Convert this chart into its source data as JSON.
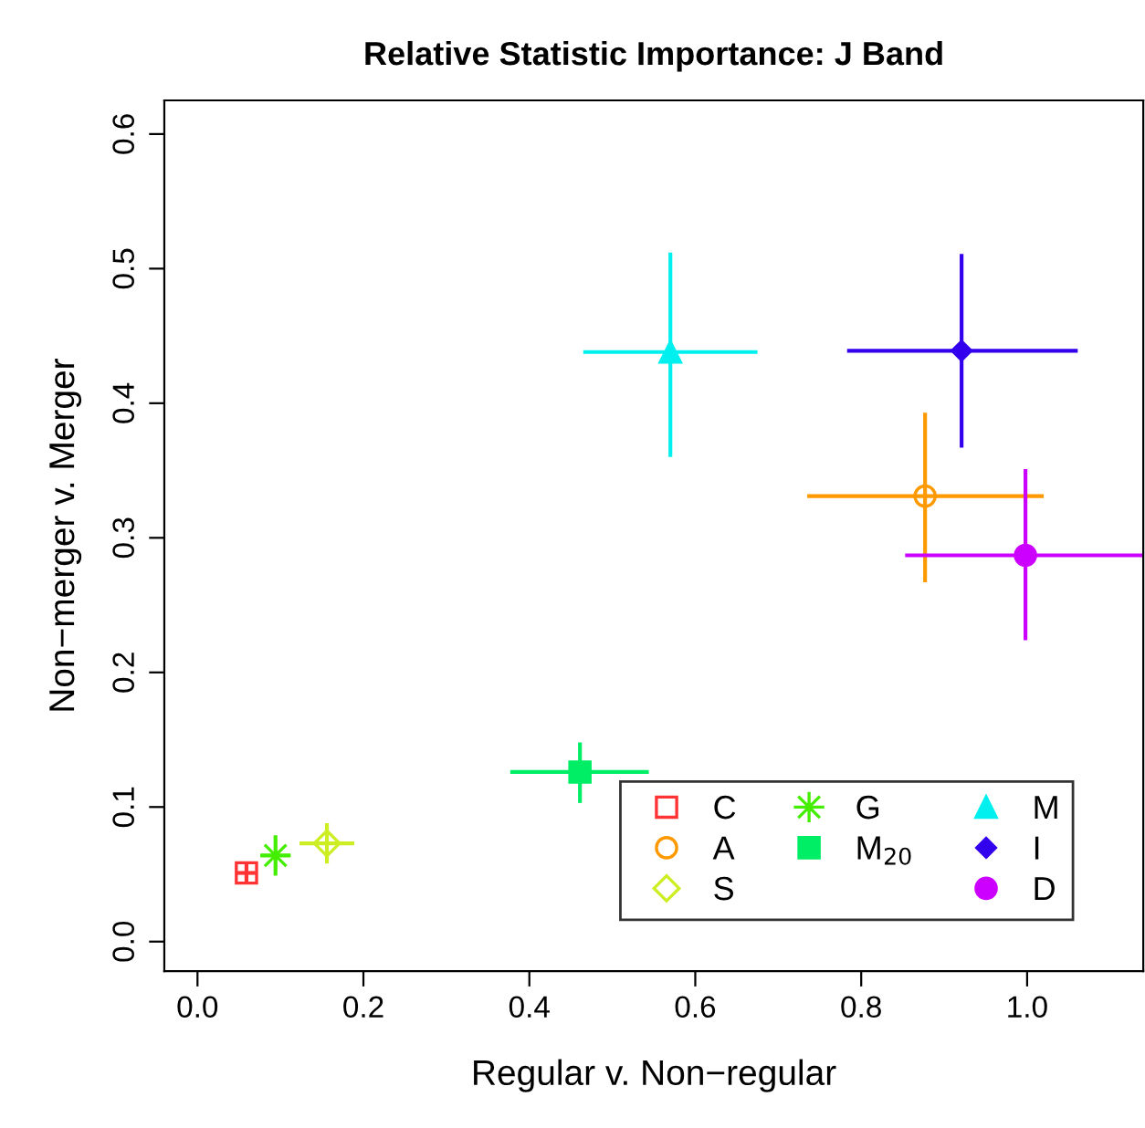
{
  "chart_data": {
    "type": "scatter",
    "title": "Relative Statistic Importance: J Band",
    "xlabel": "Regular v. Non−regular",
    "ylabel": "Non−merger v. Merger",
    "xlim": [
      -0.04,
      1.14
    ],
    "ylim": [
      -0.022,
      0.625
    ],
    "xticks": [
      {
        "value": 0,
        "label": "0.0"
      },
      0.2,
      0.4,
      0.6,
      0.8,
      {
        "value": 1,
        "label": "1.0"
      }
    ],
    "yticks": [
      {
        "value": 0,
        "label": "0.0"
      },
      0.1,
      0.2,
      0.3,
      0.4,
      0.5,
      0.6
    ],
    "grid": false,
    "legend": "bottom right",
    "series": [
      {
        "name": "C",
        "color": "#ff3333",
        "marker": "square",
        "x": [
          0.059
        ],
        "values": [
          0.051
        ],
        "xerrors": [
          [
            0.048,
            0.07
          ]
        ],
        "errors": [
          [
            0.044,
            0.058
          ]
        ]
      },
      {
        "name": "A",
        "color": "#ff9900",
        "marker": "circle",
        "x": [
          0.877
        ],
        "values": [
          0.331
        ],
        "xerrors": [
          [
            0.735,
            1.02
          ]
        ],
        "errors": [
          [
            0.267,
            0.393
          ]
        ]
      },
      {
        "name": "S",
        "color": "#ccee22",
        "marker": "diamond",
        "x": [
          0.156
        ],
        "values": [
          0.073
        ],
        "xerrors": [
          [
            0.123,
            0.189
          ]
        ],
        "errors": [
          [
            0.058,
            0.088
          ]
        ]
      },
      {
        "name": "G",
        "color": "#44ee00",
        "marker": "star",
        "x": [
          0.094
        ],
        "values": [
          0.064
        ],
        "xerrors": [
          [
            0.076,
            0.112
          ]
        ],
        "errors": [
          [
            0.049,
            0.079
          ]
        ]
      },
      {
        "name": "M$_{20}$",
        "color": "#00ee66",
        "marker": "square",
        "x": [
          0.461
        ],
        "values": [
          0.126
        ],
        "xerrors": [
          [
            0.377,
            0.544
          ]
        ],
        "errors": [
          [
            0.103,
            0.148
          ]
        ]
      },
      {
        "name": "M",
        "color": "#00f0f0",
        "marker": "triangle",
        "x": [
          0.57
        ],
        "values": [
          0.438
        ],
        "xerrors": [
          [
            0.465,
            0.675
          ]
        ],
        "errors": [
          [
            0.36,
            0.512
          ]
        ]
      },
      {
        "name": "I",
        "color": "#3300ee",
        "marker": "diamond",
        "x": [
          0.921
        ],
        "values": [
          0.439
        ],
        "xerrors": [
          [
            0.783,
            1.061
          ]
        ],
        "errors": [
          [
            0.367,
            0.511
          ]
        ]
      },
      {
        "name": "D",
        "color": "#cc00ff",
        "marker": "circle",
        "x": [
          0.998
        ],
        "values": [
          0.287
        ],
        "xerrors": [
          [
            0.853,
            1.14
          ]
        ],
        "errors": [
          [
            0.224,
            0.351
          ]
        ]
      }
    ]
  }
}
